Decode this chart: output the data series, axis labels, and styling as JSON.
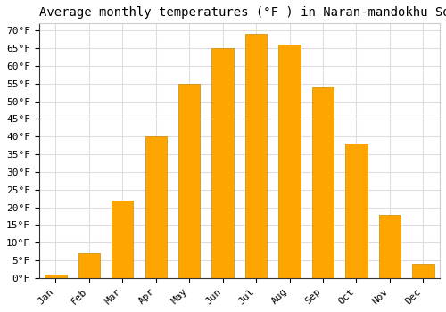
{
  "title": "Average monthly temperatures (°F ) in Naran-mandokhu Somon",
  "months": [
    "Jan",
    "Feb",
    "Mar",
    "Apr",
    "May",
    "Jun",
    "Jul",
    "Aug",
    "Sep",
    "Oct",
    "Nov",
    "Dec"
  ],
  "values": [
    1,
    7,
    22,
    40,
    55,
    65,
    69,
    66,
    54,
    38,
    18,
    4
  ],
  "bar_color": "#FFA500",
  "bar_edge_color": "#CC8800",
  "plot_bg_color": "#FFFFFF",
  "fig_bg_color": "#FFFFFF",
  "grid_color": "#DDDDDD",
  "ylim": [
    0,
    72
  ],
  "yticks": [
    0,
    5,
    10,
    15,
    20,
    25,
    30,
    35,
    40,
    45,
    50,
    55,
    60,
    65,
    70
  ],
  "title_fontsize": 10,
  "tick_fontsize": 8,
  "ylabel_suffix": "°F"
}
